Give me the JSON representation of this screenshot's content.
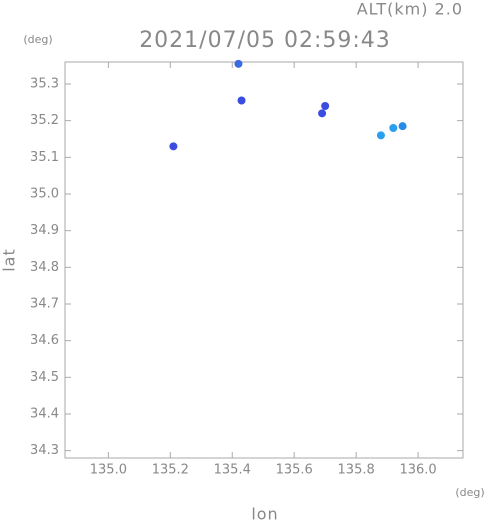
{
  "chart_data": {
    "type": "scatter",
    "title": "2021/07/05 02:59:43",
    "subtitle": "ALT(km) 2.0",
    "x_label": "lon",
    "y_label": "lat",
    "x_unit": "(deg)",
    "y_unit": "(deg)",
    "x": [
      135.21,
      135.42,
      135.43,
      135.7,
      135.69,
      135.88,
      135.92,
      135.95
    ],
    "values": [
      35.13,
      35.355,
      35.255,
      35.24,
      35.22,
      35.16,
      35.18,
      35.185
    ],
    "colors": [
      "#3b4de0",
      "#3b6be0",
      "#3b4de0",
      "#3b4de0",
      "#3b4de0",
      "#2a9ff0",
      "#2a9ff0",
      "#2a8ae8"
    ],
    "xlim": [
      134.86,
      136.145
    ],
    "ylim": [
      34.28,
      35.36
    ],
    "xticks": [
      {
        "value": 135,
        "label": "135.0"
      },
      135.2,
      135.4,
      135.6,
      135.8,
      {
        "value": 136,
        "label": "136.0"
      }
    ],
    "yticks": [
      34.3,
      34.4,
      34.5,
      34.6,
      34.7,
      34.8,
      34.9,
      {
        "value": 35,
        "label": "35.0"
      },
      35.1,
      35.2,
      35.3
    ]
  }
}
